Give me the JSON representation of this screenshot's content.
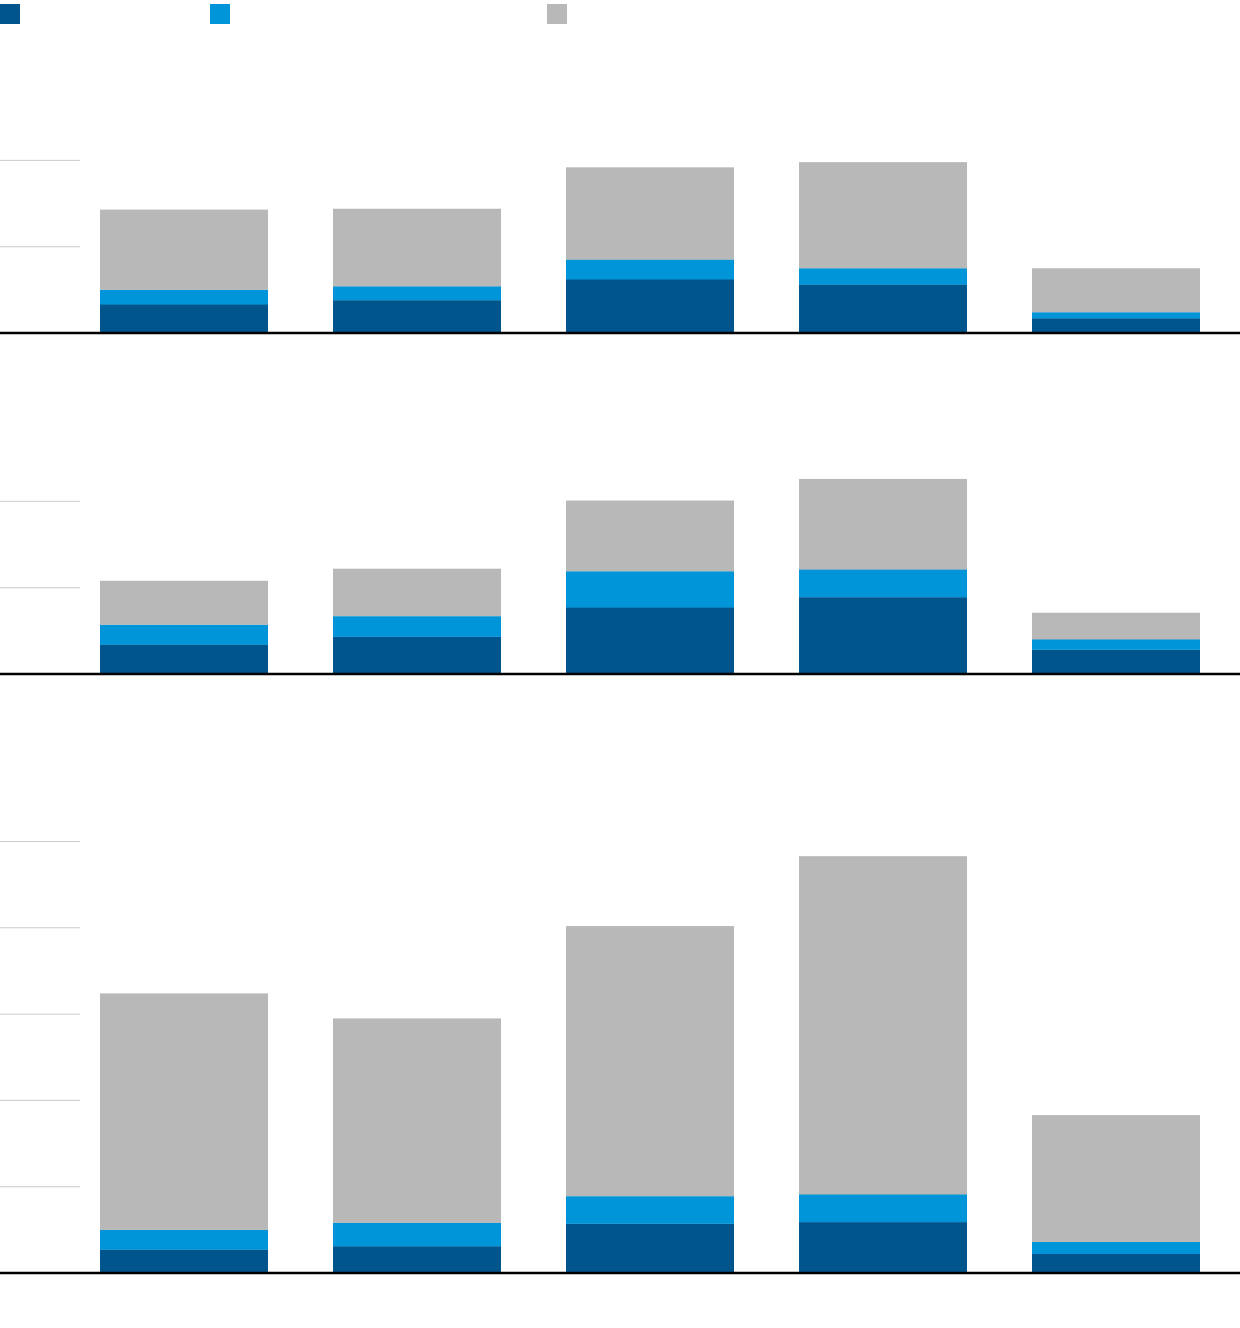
{
  "chart_data": [
    {
      "type": "bar",
      "stacked": true,
      "ylim": [
        0,
        2
      ],
      "yticks": [
        0,
        1,
        2
      ],
      "grid": true,
      "series": [
        {
          "color": "#00568c",
          "values": [
            0.33,
            0.38,
            0.62,
            0.56,
            0.17
          ]
        },
        {
          "color": "#0095d9",
          "values": [
            0.17,
            0.16,
            0.23,
            0.19,
            0.07
          ]
        },
        {
          "color": "#b8b8b8",
          "values": [
            0.93,
            0.9,
            1.07,
            1.23,
            0.51
          ]
        }
      ]
    },
    {
      "type": "bar",
      "stacked": true,
      "ylim": [
        0,
        2.3
      ],
      "yticks": [
        0,
        1,
        2
      ],
      "grid": true,
      "series": [
        {
          "color": "#00568c",
          "values": [
            0.34,
            0.43,
            0.77,
            0.89,
            0.28
          ]
        },
        {
          "color": "#0095d9",
          "values": [
            0.23,
            0.24,
            0.42,
            0.32,
            0.12
          ]
        },
        {
          "color": "#b8b8b8",
          "values": [
            0.51,
            0.55,
            0.82,
            1.05,
            0.31
          ]
        }
      ]
    },
    {
      "type": "bar",
      "stacked": true,
      "ylim": [
        0,
        5
      ],
      "yticks": [
        0,
        1,
        2,
        3,
        4,
        5
      ],
      "grid": true,
      "series": [
        {
          "color": "#00568c",
          "values": [
            0.27,
            0.31,
            0.57,
            0.59,
            0.22
          ]
        },
        {
          "color": "#0095d9",
          "values": [
            0.23,
            0.27,
            0.32,
            0.32,
            0.14
          ]
        },
        {
          "color": "#b8b8b8",
          "values": [
            2.74,
            2.37,
            3.13,
            3.92,
            1.47
          ]
        }
      ]
    }
  ]
}
